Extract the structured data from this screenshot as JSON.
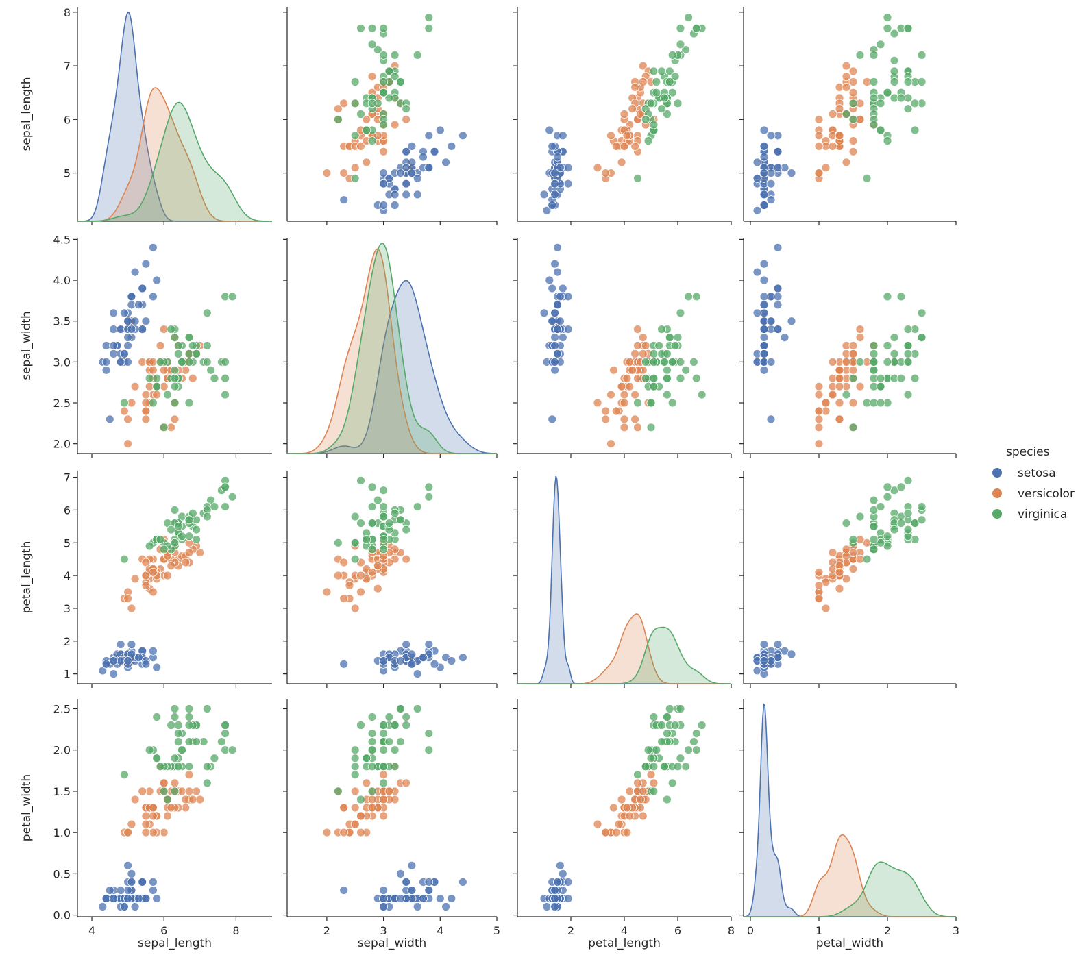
{
  "chart_data": {
    "type": "scatter",
    "kind": "pairplot",
    "variables": [
      "sepal_length",
      "sepal_width",
      "petal_length",
      "petal_width"
    ],
    "axes": {
      "sepal_length": {
        "lim": [
          3.6,
          9.0
        ],
        "ticks": [
          4,
          6,
          8
        ],
        "row_ticks": [
          5,
          6,
          7,
          8
        ]
      },
      "sepal_width": {
        "lim": [
          1.3,
          5.0
        ],
        "ticks": [
          2,
          3,
          4,
          5
        ],
        "row_ticks": [
          2.0,
          2.5,
          3.0,
          3.5,
          4.0,
          4.5
        ],
        "row_lim": [
          1.88,
          4.52
        ]
      },
      "petal_length": {
        "lim": [
          0.0,
          8.0
        ],
        "ticks": [
          2,
          4,
          6,
          8
        ],
        "row_ticks": [
          1,
          2,
          3,
          4,
          5,
          6,
          7
        ],
        "row_lim": [
          0.7,
          7.2
        ]
      },
      "petal_width": {
        "lim": [
          -0.1,
          3.0
        ],
        "ticks": [
          0,
          1,
          2,
          3
        ],
        "row_ticks": [
          0.0,
          0.5,
          1.0,
          1.5,
          2.0,
          2.5
        ],
        "row_lim": [
          -0.02,
          2.62
        ]
      }
    },
    "sepal_length_row_lim": [
      4.1,
      8.1
    ],
    "legend": {
      "title": "species",
      "entries": [
        "setosa",
        "versicolor",
        "virginica"
      ],
      "position": "right"
    },
    "series": [
      {
        "name": "setosa",
        "color": "#4c72b0",
        "points": [
          [
            5.1,
            3.5,
            1.4,
            0.2
          ],
          [
            4.9,
            3.0,
            1.4,
            0.2
          ],
          [
            4.7,
            3.2,
            1.3,
            0.2
          ],
          [
            4.6,
            3.1,
            1.5,
            0.2
          ],
          [
            5.0,
            3.6,
            1.4,
            0.2
          ],
          [
            5.4,
            3.9,
            1.7,
            0.4
          ],
          [
            4.6,
            3.4,
            1.4,
            0.3
          ],
          [
            5.0,
            3.4,
            1.5,
            0.2
          ],
          [
            4.4,
            2.9,
            1.4,
            0.2
          ],
          [
            4.9,
            3.1,
            1.5,
            0.1
          ],
          [
            5.4,
            3.7,
            1.5,
            0.2
          ],
          [
            4.8,
            3.4,
            1.6,
            0.2
          ],
          [
            4.8,
            3.0,
            1.4,
            0.1
          ],
          [
            4.3,
            3.0,
            1.1,
            0.1
          ],
          [
            5.8,
            4.0,
            1.2,
            0.2
          ],
          [
            5.7,
            4.4,
            1.5,
            0.4
          ],
          [
            5.4,
            3.9,
            1.3,
            0.4
          ],
          [
            5.1,
            3.5,
            1.4,
            0.3
          ],
          [
            5.7,
            3.8,
            1.7,
            0.3
          ],
          [
            5.1,
            3.8,
            1.5,
            0.3
          ],
          [
            5.4,
            3.4,
            1.7,
            0.2
          ],
          [
            5.1,
            3.7,
            1.5,
            0.4
          ],
          [
            4.6,
            3.6,
            1.0,
            0.2
          ],
          [
            5.1,
            3.3,
            1.7,
            0.5
          ],
          [
            4.8,
            3.4,
            1.9,
            0.2
          ],
          [
            5.0,
            3.0,
            1.6,
            0.2
          ],
          [
            5.0,
            3.4,
            1.6,
            0.4
          ],
          [
            5.2,
            3.5,
            1.5,
            0.2
          ],
          [
            5.2,
            3.4,
            1.4,
            0.2
          ],
          [
            4.7,
            3.2,
            1.6,
            0.2
          ],
          [
            4.8,
            3.1,
            1.6,
            0.2
          ],
          [
            5.4,
            3.4,
            1.5,
            0.4
          ],
          [
            5.2,
            4.1,
            1.5,
            0.1
          ],
          [
            5.5,
            4.2,
            1.4,
            0.2
          ],
          [
            4.9,
            3.1,
            1.5,
            0.2
          ],
          [
            5.0,
            3.2,
            1.2,
            0.2
          ],
          [
            5.5,
            3.5,
            1.3,
            0.2
          ],
          [
            4.9,
            3.6,
            1.4,
            0.1
          ],
          [
            4.4,
            3.0,
            1.3,
            0.2
          ],
          [
            5.1,
            3.4,
            1.5,
            0.2
          ],
          [
            5.0,
            3.5,
            1.3,
            0.3
          ],
          [
            4.5,
            2.3,
            1.3,
            0.3
          ],
          [
            4.4,
            3.2,
            1.3,
            0.2
          ],
          [
            5.0,
            3.5,
            1.6,
            0.6
          ],
          [
            5.1,
            3.8,
            1.9,
            0.4
          ],
          [
            4.8,
            3.0,
            1.4,
            0.3
          ],
          [
            5.1,
            3.8,
            1.6,
            0.2
          ],
          [
            4.6,
            3.2,
            1.4,
            0.2
          ],
          [
            5.3,
            3.7,
            1.5,
            0.2
          ],
          [
            5.0,
            3.3,
            1.4,
            0.2
          ]
        ]
      },
      {
        "name": "versicolor",
        "color": "#dd8452",
        "points": [
          [
            7.0,
            3.2,
            4.7,
            1.4
          ],
          [
            6.4,
            3.2,
            4.5,
            1.5
          ],
          [
            6.9,
            3.1,
            4.9,
            1.5
          ],
          [
            5.5,
            2.3,
            4.0,
            1.3
          ],
          [
            6.5,
            2.8,
            4.6,
            1.5
          ],
          [
            5.7,
            2.8,
            4.5,
            1.3
          ],
          [
            6.3,
            3.3,
            4.7,
            1.6
          ],
          [
            4.9,
            2.4,
            3.3,
            1.0
          ],
          [
            6.6,
            2.9,
            4.6,
            1.3
          ],
          [
            5.2,
            2.7,
            3.9,
            1.4
          ],
          [
            5.0,
            2.0,
            3.5,
            1.0
          ],
          [
            5.9,
            3.0,
            4.2,
            1.5
          ],
          [
            6.0,
            2.2,
            4.0,
            1.0
          ],
          [
            6.1,
            2.9,
            4.7,
            1.4
          ],
          [
            5.6,
            2.9,
            3.6,
            1.3
          ],
          [
            6.7,
            3.1,
            4.4,
            1.4
          ],
          [
            5.6,
            3.0,
            4.5,
            1.5
          ],
          [
            5.8,
            2.7,
            4.1,
            1.0
          ],
          [
            6.2,
            2.2,
            4.5,
            1.5
          ],
          [
            5.6,
            2.5,
            3.9,
            1.1
          ],
          [
            5.9,
            3.2,
            4.8,
            1.8
          ],
          [
            6.1,
            2.8,
            4.0,
            1.3
          ],
          [
            6.3,
            2.5,
            4.9,
            1.5
          ],
          [
            6.1,
            2.8,
            4.7,
            1.2
          ],
          [
            6.4,
            2.9,
            4.3,
            1.3
          ],
          [
            6.6,
            3.0,
            4.4,
            1.4
          ],
          [
            6.8,
            2.8,
            4.8,
            1.4
          ],
          [
            6.7,
            3.0,
            5.0,
            1.7
          ],
          [
            6.0,
            2.9,
            4.5,
            1.5
          ],
          [
            5.7,
            2.6,
            3.5,
            1.0
          ],
          [
            5.5,
            2.4,
            3.8,
            1.1
          ],
          [
            5.5,
            2.4,
            3.7,
            1.0
          ],
          [
            5.8,
            2.7,
            3.9,
            1.2
          ],
          [
            6.0,
            2.7,
            5.1,
            1.6
          ],
          [
            5.4,
            3.0,
            4.5,
            1.5
          ],
          [
            6.0,
            3.4,
            4.5,
            1.6
          ],
          [
            6.7,
            3.1,
            4.7,
            1.5
          ],
          [
            6.3,
            2.3,
            4.4,
            1.3
          ],
          [
            5.6,
            3.0,
            4.1,
            1.3
          ],
          [
            5.5,
            2.5,
            4.0,
            1.3
          ],
          [
            5.5,
            2.6,
            4.4,
            1.2
          ],
          [
            6.1,
            3.0,
            4.6,
            1.4
          ],
          [
            5.8,
            2.6,
            4.0,
            1.2
          ],
          [
            5.0,
            2.3,
            3.3,
            1.0
          ],
          [
            5.6,
            2.7,
            4.2,
            1.3
          ],
          [
            5.7,
            3.0,
            4.2,
            1.2
          ],
          [
            5.7,
            2.9,
            4.2,
            1.3
          ],
          [
            6.2,
            2.9,
            4.3,
            1.3
          ],
          [
            5.1,
            2.5,
            3.0,
            1.1
          ],
          [
            5.7,
            2.8,
            4.1,
            1.3
          ]
        ]
      },
      {
        "name": "virginica",
        "color": "#55a868",
        "points": [
          [
            6.3,
            3.3,
            6.0,
            2.5
          ],
          [
            5.8,
            2.7,
            5.1,
            1.9
          ],
          [
            7.1,
            3.0,
            5.9,
            2.1
          ],
          [
            6.3,
            2.9,
            5.6,
            1.8
          ],
          [
            6.5,
            3.0,
            5.8,
            2.2
          ],
          [
            7.6,
            3.0,
            6.6,
            2.1
          ],
          [
            4.9,
            2.5,
            4.5,
            1.7
          ],
          [
            7.3,
            2.9,
            6.3,
            1.8
          ],
          [
            6.7,
            2.5,
            5.8,
            1.8
          ],
          [
            7.2,
            3.6,
            6.1,
            2.5
          ],
          [
            6.5,
            3.2,
            5.1,
            2.0
          ],
          [
            6.4,
            2.7,
            5.3,
            1.9
          ],
          [
            6.8,
            3.0,
            5.5,
            2.1
          ],
          [
            5.7,
            2.5,
            5.0,
            2.0
          ],
          [
            5.8,
            2.8,
            5.1,
            2.4
          ],
          [
            6.4,
            3.2,
            5.3,
            2.3
          ],
          [
            6.5,
            3.0,
            5.5,
            1.8
          ],
          [
            7.7,
            3.8,
            6.7,
            2.2
          ],
          [
            7.7,
            2.6,
            6.9,
            2.3
          ],
          [
            6.0,
            2.2,
            5.0,
            1.5
          ],
          [
            6.9,
            3.2,
            5.7,
            2.3
          ],
          [
            5.6,
            2.8,
            4.9,
            2.0
          ],
          [
            7.7,
            2.8,
            6.7,
            2.0
          ],
          [
            6.3,
            2.7,
            4.9,
            1.8
          ],
          [
            6.7,
            3.3,
            5.7,
            2.1
          ],
          [
            7.2,
            3.2,
            6.0,
            1.8
          ],
          [
            6.2,
            2.8,
            4.8,
            1.8
          ],
          [
            6.1,
            3.0,
            4.9,
            1.8
          ],
          [
            6.4,
            2.8,
            5.6,
            2.1
          ],
          [
            7.2,
            3.0,
            5.8,
            1.6
          ],
          [
            7.4,
            2.8,
            6.1,
            1.9
          ],
          [
            7.9,
            3.8,
            6.4,
            2.0
          ],
          [
            6.4,
            2.8,
            5.6,
            2.2
          ],
          [
            6.3,
            2.8,
            5.1,
            1.5
          ],
          [
            6.1,
            2.6,
            5.6,
            1.4
          ],
          [
            7.7,
            3.0,
            6.1,
            2.3
          ],
          [
            6.3,
            3.4,
            5.6,
            2.4
          ],
          [
            6.4,
            3.1,
            5.5,
            1.8
          ],
          [
            6.0,
            3.0,
            4.8,
            1.8
          ],
          [
            6.9,
            3.1,
            5.4,
            2.1
          ],
          [
            6.7,
            3.1,
            5.6,
            2.4
          ],
          [
            6.9,
            3.1,
            5.1,
            2.3
          ],
          [
            5.8,
            2.7,
            5.1,
            1.9
          ],
          [
            6.8,
            3.2,
            5.9,
            2.3
          ],
          [
            6.7,
            3.3,
            5.7,
            2.5
          ],
          [
            6.7,
            3.0,
            5.2,
            2.3
          ],
          [
            6.3,
            2.5,
            5.0,
            1.9
          ],
          [
            6.5,
            3.0,
            5.2,
            2.0
          ],
          [
            6.2,
            3.4,
            5.4,
            2.3
          ],
          [
            5.9,
            3.0,
            5.1,
            1.8
          ]
        ]
      }
    ]
  }
}
